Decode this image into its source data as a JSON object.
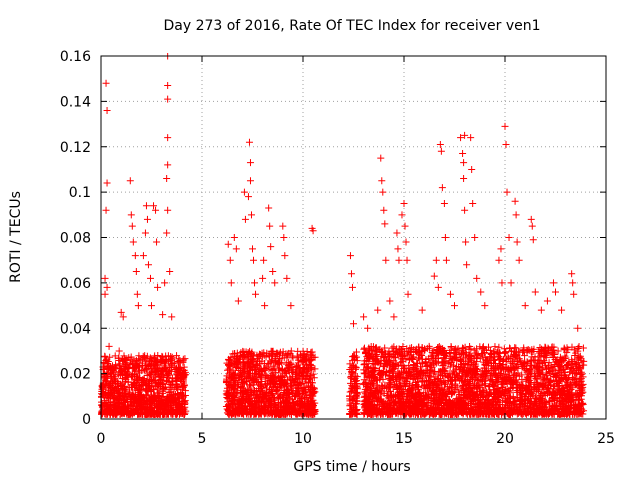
{
  "chart_data": {
    "type": "scatter",
    "title": "Day 273 of 2016, Rate Of TEC Index for receiver ven1",
    "xlabel": "GPS time / hours",
    "ylabel": "ROTI / TECUs",
    "xlim": [
      0,
      25
    ],
    "ylim": [
      0,
      0.16
    ],
    "xticks": [
      0,
      5,
      10,
      15,
      20,
      25
    ],
    "xtick_labels": [
      "0",
      "5",
      "10",
      "15",
      "20",
      "25"
    ],
    "yticks": [
      0,
      0.02,
      0.04,
      0.06,
      0.08,
      0.1,
      0.12,
      0.14,
      0.16
    ],
    "ytick_labels": [
      "0",
      "0.02",
      "0.04",
      "0.06",
      "0.08",
      "0.1",
      "0.12",
      "0.14",
      "0.16"
    ],
    "grid": true,
    "marker": "+",
    "color": "#ff0000",
    "series": [
      {
        "name": "ROTI",
        "points": [
          [
            0.25,
            0.148
          ],
          [
            0.3,
            0.136
          ],
          [
            0.3,
            0.104
          ],
          [
            0.25,
            0.092
          ],
          [
            0.2,
            0.062
          ],
          [
            0.3,
            0.058
          ],
          [
            0.2,
            0.055
          ],
          [
            0.4,
            0.032
          ],
          [
            0.9,
            0.03
          ],
          [
            1.0,
            0.047
          ],
          [
            1.1,
            0.045
          ],
          [
            1.45,
            0.105
          ],
          [
            1.5,
            0.09
          ],
          [
            1.55,
            0.085
          ],
          [
            1.6,
            0.078
          ],
          [
            1.7,
            0.072
          ],
          [
            1.75,
            0.065
          ],
          [
            1.8,
            0.055
          ],
          [
            1.85,
            0.05
          ],
          [
            2.1,
            0.072
          ],
          [
            2.2,
            0.082
          ],
          [
            2.25,
            0.094
          ],
          [
            2.3,
            0.088
          ],
          [
            2.35,
            0.068
          ],
          [
            2.45,
            0.062
          ],
          [
            2.5,
            0.05
          ],
          [
            2.6,
            0.094
          ],
          [
            2.7,
            0.092
          ],
          [
            2.75,
            0.078
          ],
          [
            2.8,
            0.058
          ],
          [
            3.05,
            0.046
          ],
          [
            3.15,
            0.06
          ],
          [
            3.3,
            0.16
          ],
          [
            3.3,
            0.147
          ],
          [
            3.3,
            0.141
          ],
          [
            3.3,
            0.124
          ],
          [
            3.3,
            0.112
          ],
          [
            3.25,
            0.106
          ],
          [
            3.3,
            0.092
          ],
          [
            3.25,
            0.082
          ],
          [
            3.4,
            0.065
          ],
          [
            3.5,
            0.045
          ],
          [
            6.3,
            0.077
          ],
          [
            6.4,
            0.07
          ],
          [
            6.45,
            0.06
          ],
          [
            6.6,
            0.08
          ],
          [
            6.7,
            0.075
          ],
          [
            6.8,
            0.052
          ],
          [
            7.1,
            0.1
          ],
          [
            7.15,
            0.088
          ],
          [
            7.3,
            0.098
          ],
          [
            7.35,
            0.122
          ],
          [
            7.4,
            0.113
          ],
          [
            7.4,
            0.105
          ],
          [
            7.45,
            0.09
          ],
          [
            7.5,
            0.075
          ],
          [
            7.55,
            0.07
          ],
          [
            7.6,
            0.06
          ],
          [
            7.65,
            0.055
          ],
          [
            8.0,
            0.062
          ],
          [
            8.05,
            0.07
          ],
          [
            8.1,
            0.05
          ],
          [
            8.3,
            0.093
          ],
          [
            8.35,
            0.085
          ],
          [
            8.4,
            0.076
          ],
          [
            8.5,
            0.065
          ],
          [
            8.6,
            0.06
          ],
          [
            9.0,
            0.085
          ],
          [
            9.05,
            0.08
          ],
          [
            9.1,
            0.072
          ],
          [
            9.2,
            0.062
          ],
          [
            9.4,
            0.05
          ],
          [
            10.45,
            0.084
          ],
          [
            10.5,
            0.083
          ],
          [
            12.35,
            0.072
          ],
          [
            12.4,
            0.064
          ],
          [
            12.45,
            0.058
          ],
          [
            12.5,
            0.042
          ],
          [
            13.0,
            0.045
          ],
          [
            13.2,
            0.04
          ],
          [
            13.7,
            0.048
          ],
          [
            13.85,
            0.115
          ],
          [
            13.9,
            0.105
          ],
          [
            13.95,
            0.1
          ],
          [
            14.0,
            0.092
          ],
          [
            14.05,
            0.086
          ],
          [
            14.1,
            0.07
          ],
          [
            14.3,
            0.052
          ],
          [
            14.5,
            0.045
          ],
          [
            14.65,
            0.082
          ],
          [
            14.7,
            0.075
          ],
          [
            14.75,
            0.07
          ],
          [
            14.9,
            0.09
          ],
          [
            15.0,
            0.095
          ],
          [
            15.05,
            0.085
          ],
          [
            15.1,
            0.078
          ],
          [
            15.15,
            0.07
          ],
          [
            15.2,
            0.055
          ],
          [
            15.9,
            0.048
          ],
          [
            16.5,
            0.063
          ],
          [
            16.6,
            0.07
          ],
          [
            16.7,
            0.058
          ],
          [
            16.8,
            0.121
          ],
          [
            16.85,
            0.118
          ],
          [
            16.9,
            0.102
          ],
          [
            17.0,
            0.095
          ],
          [
            17.05,
            0.08
          ],
          [
            17.1,
            0.07
          ],
          [
            17.3,
            0.055
          ],
          [
            17.5,
            0.05
          ],
          [
            17.8,
            0.124
          ],
          [
            17.9,
            0.117
          ],
          [
            17.95,
            0.113
          ],
          [
            18.0,
            0.125
          ],
          [
            17.95,
            0.106
          ],
          [
            18.0,
            0.092
          ],
          [
            18.05,
            0.078
          ],
          [
            18.1,
            0.068
          ],
          [
            18.3,
            0.124
          ],
          [
            18.35,
            0.11
          ],
          [
            18.4,
            0.095
          ],
          [
            18.5,
            0.08
          ],
          [
            18.6,
            0.062
          ],
          [
            18.8,
            0.056
          ],
          [
            19.0,
            0.05
          ],
          [
            19.7,
            0.07
          ],
          [
            19.8,
            0.075
          ],
          [
            19.85,
            0.06
          ],
          [
            20.0,
            0.129
          ],
          [
            20.05,
            0.121
          ],
          [
            20.1,
            0.1
          ],
          [
            20.2,
            0.08
          ],
          [
            20.3,
            0.06
          ],
          [
            20.5,
            0.096
          ],
          [
            20.55,
            0.09
          ],
          [
            20.6,
            0.078
          ],
          [
            20.7,
            0.07
          ],
          [
            21.0,
            0.05
          ],
          [
            21.3,
            0.088
          ],
          [
            21.35,
            0.085
          ],
          [
            21.4,
            0.079
          ],
          [
            21.5,
            0.056
          ],
          [
            21.8,
            0.048
          ],
          [
            22.1,
            0.052
          ],
          [
            22.4,
            0.06
          ],
          [
            22.5,
            0.056
          ],
          [
            22.8,
            0.048
          ],
          [
            23.3,
            0.064
          ],
          [
            23.35,
            0.06
          ],
          [
            23.4,
            0.055
          ],
          [
            23.6,
            0.04
          ]
        ],
        "dense_bands": [
          {
            "x": [
              0.0,
              4.2
            ],
            "y": [
              0.002,
              0.028
            ]
          },
          {
            "x": [
              6.2,
              10.6
            ],
            "y": [
              0.002,
              0.03
            ]
          },
          {
            "x": [
              12.3,
              12.7
            ],
            "y": [
              0.002,
              0.03
            ]
          },
          {
            "x": [
              13.0,
              23.9
            ],
            "y": [
              0.002,
              0.032
            ]
          }
        ]
      }
    ]
  }
}
